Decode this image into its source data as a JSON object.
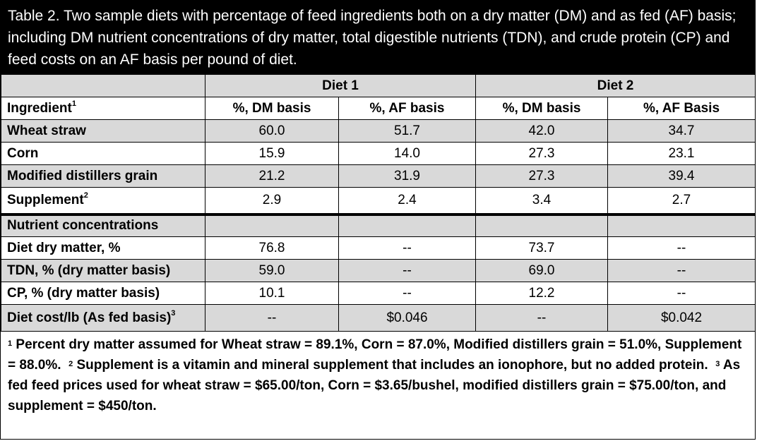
{
  "title": "Table 2. Two sample diets with percentage of feed ingredients both on a dry matter (DM) and as fed (AF) basis; including DM nutrient concentrations of dry matter, total digestible nutrients (TDN), and crude protein (CP) and feed costs on an AF basis per pound of diet.",
  "header": {
    "diet1": "Diet 1",
    "diet2": "Diet 2",
    "ingredient": "Ingredient",
    "ingredient_sup": "1",
    "dm_basis": "%, DM basis",
    "af_basis_1": "%, AF basis",
    "dm_basis_2": "%, DM basis",
    "af_basis_2": "%, AF Basis"
  },
  "ingredients": [
    {
      "name": "Wheat straw",
      "sup": "",
      "v": [
        "60.0",
        "51.7",
        "42.0",
        "34.7"
      ]
    },
    {
      "name": "Corn",
      "sup": "",
      "v": [
        "15.9",
        "14.0",
        "27.3",
        "23.1"
      ]
    },
    {
      "name": "Modified distillers grain",
      "sup": "",
      "v": [
        "21.2",
        "31.9",
        "27.3",
        "39.4"
      ]
    },
    {
      "name": "Supplement",
      "sup": "2",
      "v": [
        "2.9",
        "2.4",
        "3.4",
        "2.7"
      ]
    }
  ],
  "nutrients_heading": "Nutrient concentrations",
  "nutrients": [
    {
      "name": "Diet dry matter, %",
      "sup": "",
      "v": [
        "76.8",
        "--",
        "73.7",
        "--"
      ]
    },
    {
      "name": "TDN, % (dry matter basis)",
      "sup": "",
      "v": [
        "59.0",
        "--",
        "69.0",
        "--"
      ]
    },
    {
      "name": "CP, % (dry matter basis)",
      "sup": "",
      "v": [
        "10.1",
        "--",
        "12.2",
        "--"
      ]
    },
    {
      "name": "Diet cost/lb (As fed basis)",
      "sup": "3",
      "v": [
        "--",
        "$0.046",
        "--",
        "$0.042"
      ]
    }
  ],
  "footnotes": {
    "n1_mark": "1",
    "n1": "Percent dry matter assumed for Wheat straw = 89.1%, Corn = 87.0%, Modified distillers grain = 51.0%, Supplement = 88.0%.",
    "n2_mark": "2",
    "n2": "Supplement is a vitamin and mineral supplement that includes an ionophore, but no added protein.",
    "n3_mark": "3",
    "n3": "As fed feed prices used for wheat straw = $65.00/ton, Corn = $3.65/bushel, modified distillers grain = $75.00/ton, and supplement = $450/ton."
  }
}
